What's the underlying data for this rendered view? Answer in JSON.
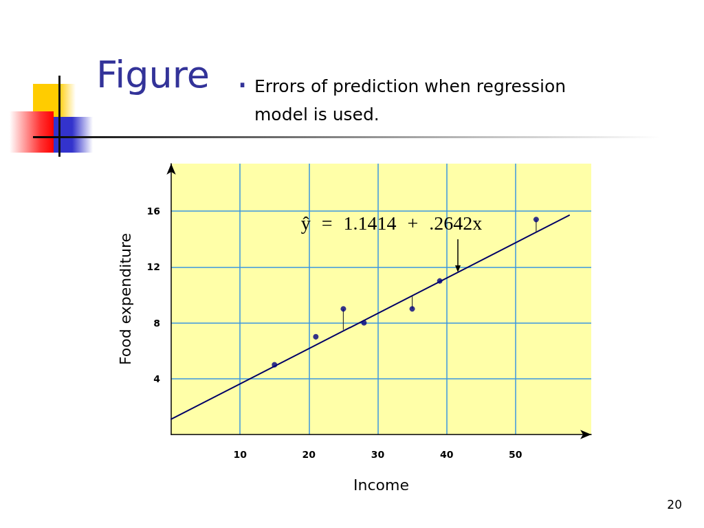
{
  "chart_data": {
    "type": "scatter",
    "title": "Figure .",
    "subtitle": "Errors of prediction when regression model is used.",
    "xlabel": "Income",
    "ylabel": "Food expenditure",
    "series": [
      {
        "color": "#000080",
        "marker": "circle",
        "x": [
          15,
          21,
          25,
          28,
          35,
          39,
          53
        ],
        "values": [
          5,
          7,
          9,
          8,
          9,
          11,
          15.4
        ],
        "errors": [
          null,
          null,
          [
            7.5,
            9
          ],
          null,
          [
            9,
            9.9
          ],
          null,
          [
            14.5,
            15.4
          ]
        ]
      },
      {
        "type": "line",
        "color": "#000066",
        "marker": "none",
        "x": [
          0,
          57.8
        ],
        "values": [
          1.1,
          15.7
        ]
      }
    ],
    "xlim": [
      0,
      61
    ],
    "xticks": [
      10,
      20,
      30,
      40,
      50
    ],
    "ylim": [
      0,
      19.4
    ],
    "yticks": [
      4,
      8,
      12,
      16
    ],
    "grid": true,
    "annotations": [
      {
        "text": "ŷ = 1.1414 + .2642x",
        "x": 41.6,
        "y": 11.6
      },
      "20"
    ]
  }
}
